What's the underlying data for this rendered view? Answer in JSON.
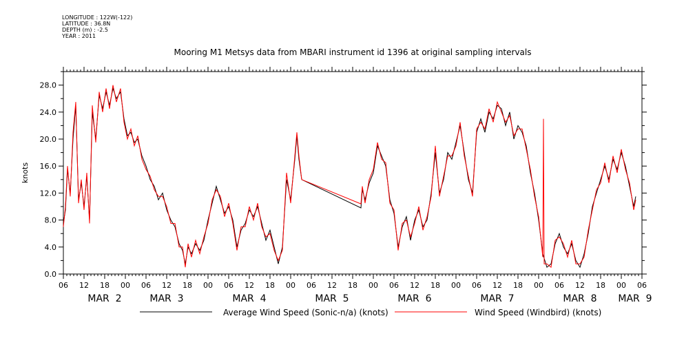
{
  "header": {
    "longitude": "LONGITUDE : 122W(-122)",
    "latitude": "LATITUDE : 36.8N",
    "depth": "DEPTH (m) : -2.5",
    "year": "YEAR : 2011"
  },
  "chart_data": {
    "type": "line",
    "title": "Mooring M1 Metsys data from MBARI instrument id 1396 at original sampling intervals",
    "ylabel": "knots",
    "ylim": [
      0,
      30
    ],
    "yticks": [
      "0.0",
      "4.0",
      "8.0",
      "12.0",
      "16.0",
      "20.0",
      "24.0",
      "28.0"
    ],
    "xlim_hours": [
      0,
      168
    ],
    "hour_labels": [
      "06",
      "12",
      "18",
      "00",
      "06",
      "12",
      "18",
      "00",
      "06",
      "12",
      "18",
      "00",
      "06",
      "12",
      "18",
      "00",
      "06",
      "12",
      "18",
      "00",
      "06",
      "12",
      "18",
      "00",
      "06",
      "12",
      "18",
      "00",
      "06"
    ],
    "day_labels": [
      {
        "text": "MAR  2",
        "hour": 12
      },
      {
        "text": "MAR  3",
        "hour": 30
      },
      {
        "text": "MAR  4",
        "hour": 54
      },
      {
        "text": "MAR  5",
        "hour": 78
      },
      {
        "text": "MAR  6",
        "hour": 102
      },
      {
        "text": "MAR  7",
        "hour": 126
      },
      {
        "text": "MAR  8",
        "hour": 150
      },
      {
        "text": "MAR  9",
        "hour": 166
      }
    ],
    "series": [
      {
        "name": "Average Wind Speed (Sonic-n/a) (knots)",
        "color": "#000000",
        "points": [
          [
            0,
            7.5
          ],
          [
            0.6,
            9.5
          ],
          [
            1.2,
            15.5
          ],
          [
            2,
            12
          ],
          [
            2.8,
            20
          ],
          [
            3.6,
            25
          ],
          [
            4.4,
            11
          ],
          [
            5.2,
            13.5
          ],
          [
            6,
            10
          ],
          [
            6.8,
            14.5
          ],
          [
            7.6,
            8
          ],
          [
            8.4,
            24
          ],
          [
            9.4,
            20
          ],
          [
            10.4,
            26.5
          ],
          [
            11.4,
            24.5
          ],
          [
            12.4,
            27
          ],
          [
            13.4,
            25
          ],
          [
            14.4,
            27.5
          ],
          [
            15.4,
            26
          ],
          [
            16.6,
            27
          ],
          [
            17.6,
            23
          ],
          [
            18.6,
            20.5
          ],
          [
            19.6,
            21
          ],
          [
            20.6,
            19.5
          ],
          [
            21.6,
            20
          ],
          [
            22.8,
            17.5
          ],
          [
            24,
            16
          ],
          [
            25.2,
            14
          ],
          [
            26.4,
            13
          ],
          [
            27.6,
            11
          ],
          [
            28.8,
            12
          ],
          [
            30,
            9.5
          ],
          [
            31.2,
            8
          ],
          [
            32.4,
            7
          ],
          [
            33.6,
            4.5
          ],
          [
            34.6,
            3.5
          ],
          [
            35.4,
            1.5
          ],
          [
            36.2,
            4
          ],
          [
            37.2,
            3
          ],
          [
            38.4,
            4.5
          ],
          [
            39.6,
            3.5
          ],
          [
            40.8,
            5
          ],
          [
            42,
            8
          ],
          [
            43.2,
            10.5
          ],
          [
            44.4,
            13
          ],
          [
            45.6,
            11
          ],
          [
            46.8,
            9
          ],
          [
            48,
            10
          ],
          [
            49.2,
            8
          ],
          [
            50.4,
            4
          ],
          [
            51.6,
            6.5
          ],
          [
            52.8,
            7.5
          ],
          [
            54,
            9.5
          ],
          [
            55.2,
            8.5
          ],
          [
            56.4,
            10
          ],
          [
            57.6,
            7.5
          ],
          [
            58.8,
            5
          ],
          [
            60,
            6.5
          ],
          [
            61.2,
            4
          ],
          [
            62.4,
            1.5
          ],
          [
            63.6,
            4
          ],
          [
            64.8,
            14
          ],
          [
            66,
            11
          ],
          [
            67.2,
            17
          ],
          [
            67.8,
            20.5
          ],
          [
            68.4,
            17
          ],
          [
            69.2,
            14
          ]
        ],
        "gap_to": [
          [
            86.4,
            9.8
          ],
          [
            86.8,
            12.5
          ],
          [
            87.6,
            11
          ],
          [
            88.8,
            13.5
          ],
          [
            90,
            15
          ],
          [
            91.2,
            19
          ],
          [
            92.4,
            17.5
          ],
          [
            93.6,
            16
          ],
          [
            94.8,
            11
          ],
          [
            96,
            9
          ],
          [
            97.2,
            4
          ],
          [
            98.4,
            7
          ],
          [
            99.6,
            8.5
          ],
          [
            100.8,
            5
          ],
          [
            102,
            8
          ],
          [
            103.2,
            9.5
          ],
          [
            104.4,
            7
          ],
          [
            105.6,
            8
          ],
          [
            106.8,
            12
          ],
          [
            108,
            18
          ],
          [
            109.2,
            12
          ],
          [
            110.4,
            14
          ],
          [
            111.6,
            18
          ],
          [
            112.8,
            17
          ],
          [
            114,
            19.5
          ],
          [
            115.2,
            22
          ],
          [
            116.4,
            18
          ],
          [
            117.6,
            14
          ],
          [
            118.8,
            12
          ],
          [
            120,
            21
          ],
          [
            121.2,
            23
          ],
          [
            122.4,
            21
          ],
          [
            123.6,
            24
          ],
          [
            124.8,
            23
          ],
          [
            126,
            25
          ],
          [
            127.2,
            24.5
          ],
          [
            128.4,
            22
          ],
          [
            129.6,
            24
          ],
          [
            130.8,
            20
          ],
          [
            132,
            22
          ],
          [
            133.2,
            21
          ],
          [
            134.4,
            19
          ],
          [
            135.6,
            15
          ],
          [
            136.8,
            12
          ],
          [
            138,
            8
          ],
          [
            139.2,
            3
          ],
          [
            140.4,
            1
          ],
          [
            141.6,
            1.5
          ],
          [
            142.8,
            4.5
          ],
          [
            144,
            6
          ],
          [
            145.2,
            4
          ],
          [
            146.4,
            3
          ],
          [
            147.6,
            4.5
          ],
          [
            148.8,
            2
          ],
          [
            150,
            1
          ],
          [
            151.2,
            3
          ],
          [
            152.4,
            6
          ],
          [
            153.6,
            10
          ],
          [
            154.8,
            12
          ],
          [
            156,
            14
          ],
          [
            157.2,
            16
          ],
          [
            158.4,
            14
          ],
          [
            159.6,
            17
          ],
          [
            160.8,
            15.5
          ],
          [
            162,
            18
          ],
          [
            163.2,
            16
          ],
          [
            164.4,
            13
          ],
          [
            165.6,
            10
          ],
          [
            166.2,
            11.5
          ]
        ]
      },
      {
        "name": "Wind Speed (Windbird) (knots)",
        "color": "#ff0000",
        "points": [
          [
            0,
            7
          ],
          [
            0.6,
            10
          ],
          [
            1.2,
            16
          ],
          [
            2,
            11.5
          ],
          [
            2.8,
            21
          ],
          [
            3.6,
            25.5
          ],
          [
            4.4,
            10.5
          ],
          [
            5.2,
            14
          ],
          [
            6,
            9.5
          ],
          [
            6.8,
            15
          ],
          [
            7.6,
            7.5
          ],
          [
            8.4,
            25
          ],
          [
            9.4,
            19.5
          ],
          [
            10.4,
            27
          ],
          [
            11.4,
            24
          ],
          [
            12.4,
            27.5
          ],
          [
            13.4,
            24.5
          ],
          [
            14.4,
            28
          ],
          [
            15.4,
            25.5
          ],
          [
            16.6,
            27.5
          ],
          [
            17.6,
            22.5
          ],
          [
            18.6,
            20
          ],
          [
            19.6,
            21.5
          ],
          [
            20.6,
            19
          ],
          [
            21.6,
            20.5
          ],
          [
            22.8,
            17
          ],
          [
            24,
            15.5
          ],
          [
            25.2,
            14.5
          ],
          [
            26.4,
            12.5
          ],
          [
            27.6,
            11.5
          ],
          [
            28.8,
            11.5
          ],
          [
            30,
            10
          ],
          [
            31.2,
            7.5
          ],
          [
            32.4,
            7.5
          ],
          [
            33.6,
            4
          ],
          [
            34.6,
            4
          ],
          [
            35.4,
            1
          ],
          [
            36.2,
            4.5
          ],
          [
            37.2,
            2.5
          ],
          [
            38.4,
            5
          ],
          [
            39.6,
            3
          ],
          [
            40.8,
            5.5
          ],
          [
            42,
            7.5
          ],
          [
            43.2,
            11
          ],
          [
            44.4,
            12.5
          ],
          [
            45.6,
            11.5
          ],
          [
            46.8,
            8.5
          ],
          [
            48,
            10.5
          ],
          [
            49.2,
            7.5
          ],
          [
            50.4,
            3.5
          ],
          [
            51.6,
            7
          ],
          [
            52.8,
            7
          ],
          [
            54,
            10
          ],
          [
            55.2,
            8
          ],
          [
            56.4,
            10.5
          ],
          [
            57.6,
            7
          ],
          [
            58.8,
            5.5
          ],
          [
            60,
            6
          ],
          [
            61.2,
            3.5
          ],
          [
            62.4,
            2
          ],
          [
            63.6,
            3.5
          ],
          [
            64.8,
            15
          ],
          [
            66,
            10.5
          ],
          [
            67.2,
            17.5
          ],
          [
            67.8,
            21
          ],
          [
            68.4,
            17.5
          ],
          [
            69.2,
            14
          ]
        ],
        "gap_to": [
          [
            86.4,
            10.4
          ],
          [
            86.8,
            13
          ],
          [
            87.6,
            10.5
          ],
          [
            88.8,
            14
          ],
          [
            90,
            15.5
          ],
          [
            91.2,
            19.5
          ],
          [
            92.4,
            17
          ],
          [
            93.6,
            16.5
          ],
          [
            94.8,
            10.5
          ],
          [
            96,
            9.5
          ],
          [
            97.2,
            3.5
          ],
          [
            98.4,
            7.5
          ],
          [
            99.6,
            8
          ],
          [
            100.8,
            5.5
          ],
          [
            102,
            7.5
          ],
          [
            103.2,
            10
          ],
          [
            104.4,
            6.5
          ],
          [
            105.6,
            8.5
          ],
          [
            106.8,
            11.5
          ],
          [
            108,
            19
          ],
          [
            109.2,
            11.5
          ],
          [
            110.4,
            14.5
          ],
          [
            111.6,
            17.5
          ],
          [
            112.8,
            17.5
          ],
          [
            114,
            19
          ],
          [
            115.2,
            22.5
          ],
          [
            116.4,
            17.5
          ],
          [
            117.6,
            14.5
          ],
          [
            118.8,
            11.5
          ],
          [
            120,
            21.5
          ],
          [
            121.2,
            22.5
          ],
          [
            122.4,
            21.5
          ],
          [
            123.6,
            24.5
          ],
          [
            124.8,
            22.5
          ],
          [
            126,
            25.5
          ],
          [
            127.2,
            24
          ],
          [
            128.4,
            22.5
          ],
          [
            129.6,
            23.5
          ],
          [
            130.8,
            20.5
          ],
          [
            132,
            21.5
          ],
          [
            133.2,
            21.5
          ],
          [
            134.4,
            18.5
          ],
          [
            135.6,
            15.5
          ],
          [
            136.8,
            11.5
          ],
          [
            138,
            8.5
          ],
          [
            139.2,
            2.5
          ],
          [
            139.4,
            23
          ],
          [
            139.6,
            1.5
          ],
          [
            140.4,
            1.5
          ],
          [
            141.6,
            1
          ],
          [
            142.8,
            5
          ],
          [
            144,
            5.5
          ],
          [
            145.2,
            4.5
          ],
          [
            146.4,
            2.5
          ],
          [
            147.6,
            5
          ],
          [
            148.8,
            1.5
          ],
          [
            150,
            1.5
          ],
          [
            151.2,
            2.5
          ],
          [
            152.4,
            6.5
          ],
          [
            153.6,
            9.5
          ],
          [
            154.8,
            12.5
          ],
          [
            156,
            13.5
          ],
          [
            157.2,
            16.5
          ],
          [
            158.4,
            13.5
          ],
          [
            159.6,
            17.5
          ],
          [
            160.8,
            15
          ],
          [
            162,
            18.5
          ],
          [
            163.2,
            15.5
          ],
          [
            164.4,
            13.5
          ],
          [
            165.6,
            9.5
          ],
          [
            166.2,
            11
          ]
        ]
      }
    ],
    "legend_placement": "bottom",
    "grid": false
  }
}
